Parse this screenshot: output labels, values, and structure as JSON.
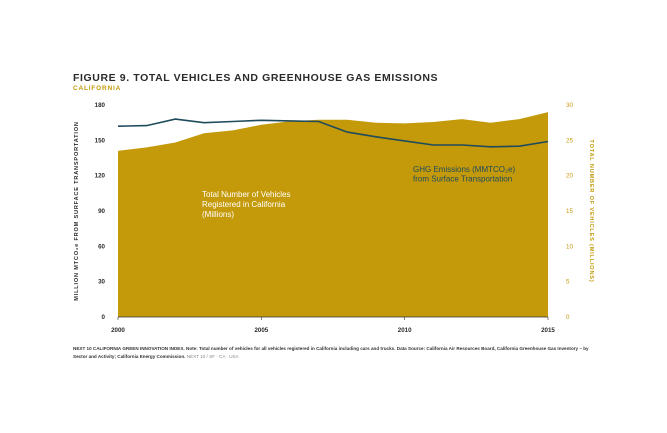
{
  "figure": {
    "title": "FIGURE 9. TOTAL VEHICLES AND GREENHOUSE GAS EMISSIONS",
    "subtitle": "CALIFORNIA"
  },
  "colors": {
    "area": "#c49a0a",
    "line": "#1f4b5c",
    "right_axis_text": "#c49a0a",
    "text": "#2b2b2b"
  },
  "chart_data": {
    "type": "area",
    "x": [
      2000,
      2001,
      2002,
      2003,
      2004,
      2005,
      2006,
      2007,
      2008,
      2009,
      2010,
      2011,
      2012,
      2013,
      2014,
      2015
    ],
    "x_tick_labels": [
      "2000",
      "2005",
      "2010",
      "2015"
    ],
    "left_axis": {
      "label": "MILLION MTCO₂e FROM SURFACE TRANSPORTATION",
      "ylim": [
        0,
        180
      ],
      "ticks": [
        "0",
        "30",
        "60",
        "90",
        "120",
        "150",
        "180"
      ]
    },
    "right_axis": {
      "label": "TOTAL NUMBER OF VEHICLES (MILLIONS)",
      "ylim": [
        0,
        30
      ],
      "ticks": [
        "0",
        "5",
        "10",
        "15",
        "20",
        "25",
        "30"
      ]
    },
    "series": [
      {
        "name": "Total Number of Vehicles Registered in California (Millions)",
        "type": "area",
        "axis": "right",
        "label_lines": [
          "Total Number of Vehicles",
          "Registered in California",
          "(Millions)"
        ],
        "values": [
          23.5,
          24.0,
          24.7,
          26.0,
          26.4,
          27.2,
          27.7,
          27.9,
          27.9,
          27.5,
          27.4,
          27.6,
          28.0,
          27.5,
          28.0,
          29.0
        ]
      },
      {
        "name": "GHG Emissions (MMTCO₂e) from Surface Transportation",
        "type": "line",
        "axis": "left",
        "label_lines": [
          "GHG Emissions (MMTCO₂e)",
          "from Surface Transportation"
        ],
        "values": [
          162,
          162.5,
          168,
          165,
          166,
          167,
          166.5,
          166,
          157,
          153,
          149.5,
          146,
          146,
          144.5,
          145,
          149
        ]
      }
    ]
  },
  "footnote": {
    "source_bold": "NEXT 10 CALIFORNIA GREEN INNOVATION INDEX.",
    "note": "Note: Total number of vehicles for all vehicles registered in California including cars and trucks. Data Source: California Air Resources Board, California Greenhouse Gas Inventory – by Sector and Activity; California Energy Commission.",
    "tail": "NEXT 10 / SF · CA · USA"
  }
}
